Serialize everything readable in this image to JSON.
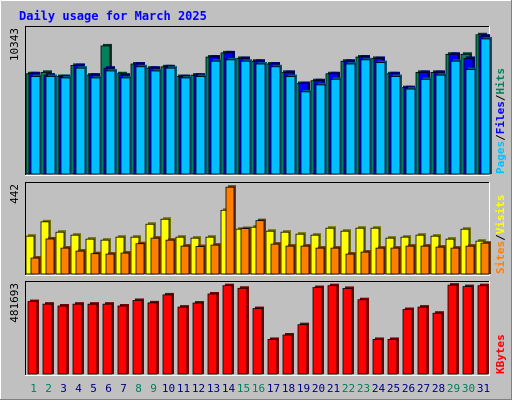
{
  "title": "Daily usage for March 2025",
  "colors": {
    "background": "#c0c0c0",
    "hits": "#00805c",
    "files": "#0000ff",
    "pages": "#00c0ff",
    "visits": "#ffff00",
    "sites": "#ff8000",
    "kbytes": "#ff0000",
    "title_text": "#0000ff",
    "weekend_day": "#00805c",
    "weekday_day": "#000080"
  },
  "days": [
    "1",
    "2",
    "3",
    "4",
    "5",
    "6",
    "7",
    "8",
    "9",
    "10",
    "11",
    "12",
    "13",
    "14",
    "15",
    "16",
    "17",
    "18",
    "19",
    "20",
    "21",
    "22",
    "23",
    "24",
    "25",
    "26",
    "27",
    "28",
    "29",
    "30",
    "31"
  ],
  "weekend_days": [
    "1",
    "2",
    "8",
    "9",
    "15",
    "16",
    "22",
    "23",
    "29",
    "30"
  ],
  "chart_data": [
    {
      "type": "bar",
      "panel": "top",
      "y_max_label": "10343",
      "ylim": [
        0,
        10343
      ],
      "legend": [
        "Pages",
        "Files",
        "Hits"
      ],
      "series": [
        {
          "name": "Hits",
          "color_key": "hits",
          "values": [
            7200,
            7300,
            7000,
            7800,
            7100,
            9200,
            7200,
            7900,
            7600,
            7700,
            7000,
            7100,
            8400,
            8700,
            8300,
            8100,
            7900,
            7300,
            6500,
            6700,
            7200,
            8100,
            8400,
            8300,
            7200,
            6200,
            7300,
            7300,
            8600,
            8600,
            10000
          ]
        },
        {
          "name": "Files",
          "color_key": "files",
          "values": [
            7200,
            7100,
            7000,
            7800,
            7100,
            7600,
            7100,
            7900,
            7600,
            7700,
            7000,
            7100,
            8400,
            8700,
            8300,
            8100,
            7900,
            7300,
            6500,
            6700,
            7200,
            8100,
            8400,
            8300,
            7200,
            6200,
            7300,
            7300,
            8600,
            8300,
            9900
          ]
        },
        {
          "name": "Pages",
          "color_key": "pages",
          "values": [
            7000,
            7000,
            6900,
            7600,
            6900,
            7400,
            6900,
            7700,
            7400,
            7600,
            6900,
            7000,
            8100,
            8200,
            8100,
            7900,
            7700,
            7000,
            5900,
            6400,
            6800,
            7900,
            8200,
            8000,
            7000,
            6100,
            6800,
            7100,
            8100,
            7500,
            9700
          ]
        }
      ]
    },
    {
      "type": "bar",
      "panel": "middle",
      "y_max_label": "442",
      "ylim": [
        0,
        442
      ],
      "legend": [
        "Sites",
        "Visits"
      ],
      "series": [
        {
          "name": "Visits",
          "color_key": "visits",
          "values": [
            190,
            262,
            210,
            195,
            175,
            170,
            185,
            185,
            250,
            275,
            185,
            180,
            185,
            320,
            225,
            235,
            215,
            210,
            200,
            195,
            230,
            215,
            230,
            230,
            180,
            185,
            195,
            190,
            175,
            225,
            165
          ]
        },
        {
          "name": "Sites",
          "color_key": "sites",
          "values": [
            80,
            176,
            130,
            115,
            102,
            100,
            105,
            152,
            180,
            170,
            140,
            138,
            145,
            436,
            228,
            268,
            150,
            140,
            140,
            130,
            130,
            100,
            110,
            130,
            130,
            140,
            140,
            135,
            130,
            140,
            155
          ]
        }
      ]
    },
    {
      "type": "bar",
      "panel": "bottom",
      "y_max_label": "481693",
      "ylim": [
        0,
        481693
      ],
      "legend": [
        "KBytes"
      ],
      "series": [
        {
          "name": "KBytes",
          "color_key": "kbytes",
          "values": [
            392000,
            378000,
            368000,
            378000,
            378000,
            378000,
            368000,
            398000,
            385000,
            428000,
            362000,
            384000,
            433000,
            478000,
            464000,
            354000,
            187000,
            211000,
            267000,
            468000,
            478000,
            463000,
            402000,
            187000,
            187000,
            349000,
            362000,
            329000,
            481000,
            473000,
            478000
          ]
        }
      ]
    }
  ]
}
